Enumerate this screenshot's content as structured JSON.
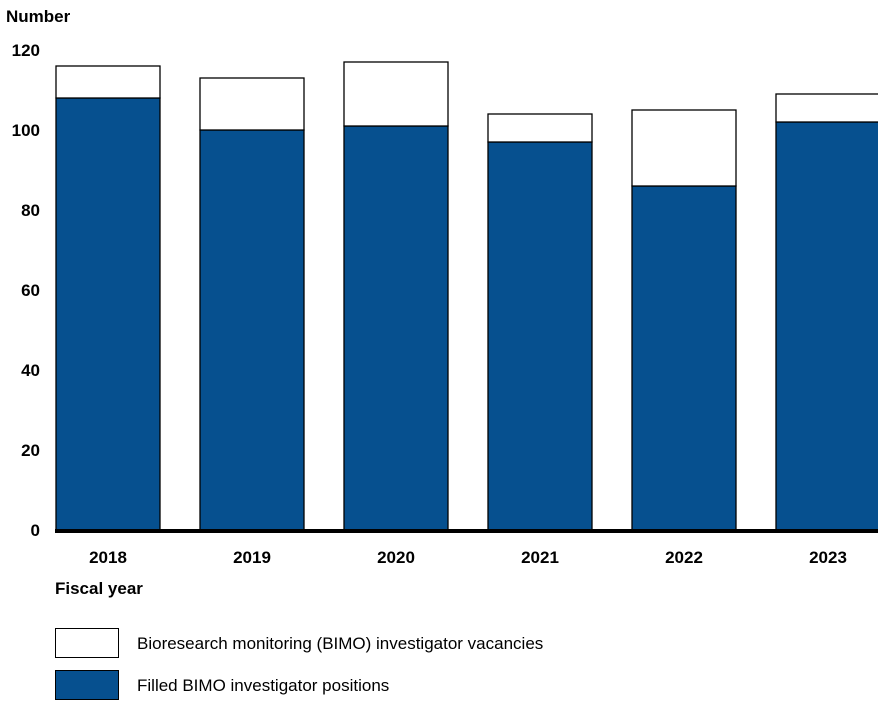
{
  "chart_data": {
    "type": "bar",
    "stacked": true,
    "categories": [
      "2018",
      "2019",
      "2020",
      "2021",
      "2022",
      "2023"
    ],
    "series": [
      {
        "name": "Filled BIMO investigator positions",
        "values": [
          108,
          100,
          101,
          97,
          86,
          102
        ],
        "color": "#06508f"
      },
      {
        "name": "Bioresearch monitoring (BIMO) investigator vacancies",
        "values": [
          8,
          13,
          16,
          7,
          19,
          7
        ],
        "color": "#ffffff"
      }
    ],
    "ylabel": "Number",
    "xlabel": "Fiscal year",
    "ylim": [
      0,
      120
    ],
    "yticks": [
      "0",
      "20",
      "40",
      "60",
      "80",
      "100",
      "120"
    ],
    "grid": false,
    "legend_position": "bottom-left"
  }
}
